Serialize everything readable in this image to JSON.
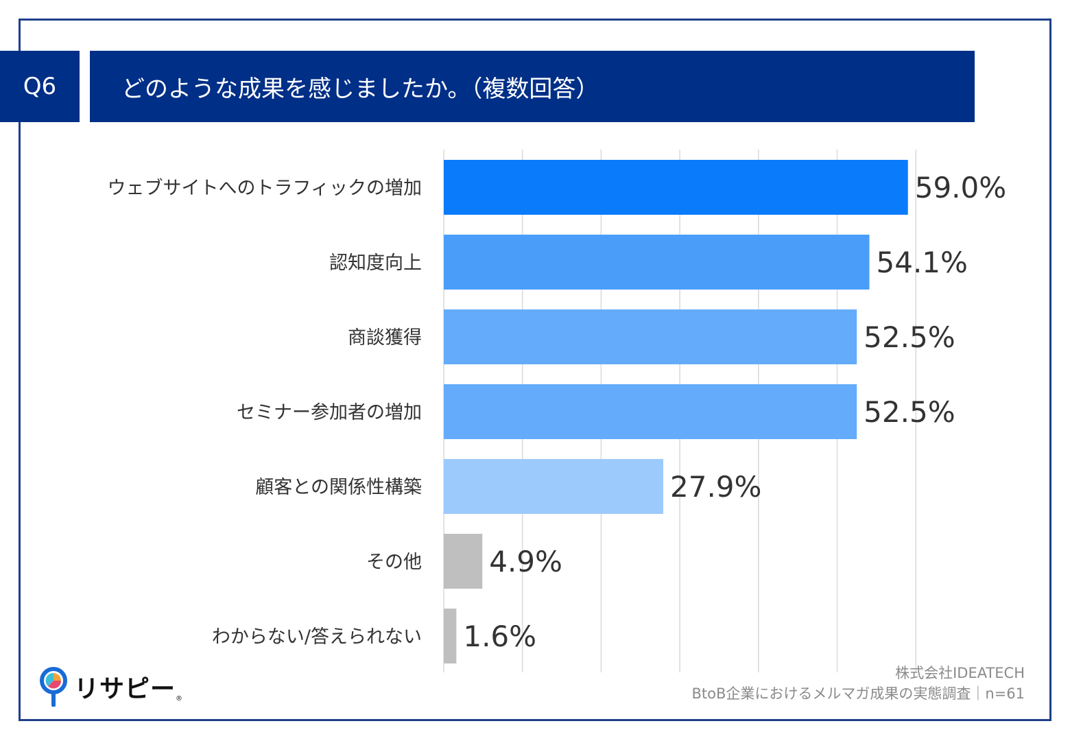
{
  "question": {
    "number": "Q6",
    "text": "どのような成果を感じましたか。（複数回答）"
  },
  "chart_data": {
    "type": "bar",
    "orientation": "horizontal",
    "categories": [
      "ウェブサイトへのトラフィックの増加",
      "認知度向上",
      "商談獲得",
      "セミナー参加者の増加",
      "顧客との関係性構築",
      "その他",
      "わからない/答えられない"
    ],
    "values": [
      59.0,
      54.1,
      52.5,
      52.5,
      27.9,
      4.9,
      1.6
    ],
    "value_labels": [
      "59.0%",
      "54.1%",
      "52.5%",
      "52.5%",
      "27.9%",
      "4.9%",
      "1.6%"
    ],
    "colors": [
      "#0a7bfa",
      "#4a9efa",
      "#64acfb",
      "#64acfb",
      "#9ccafd",
      "#bfbfbf",
      "#bfbfbf"
    ],
    "xlim": [
      0,
      60
    ],
    "gridline_step": 10,
    "grid": true,
    "unit": "%"
  },
  "footer": {
    "company": "株式会社IDEATECH",
    "survey": "BtoB企業におけるメルマガ成果の実態調査｜n=61"
  },
  "logo": {
    "text": "リサピー",
    "icon": "pin-pie-icon",
    "mark": "®"
  }
}
